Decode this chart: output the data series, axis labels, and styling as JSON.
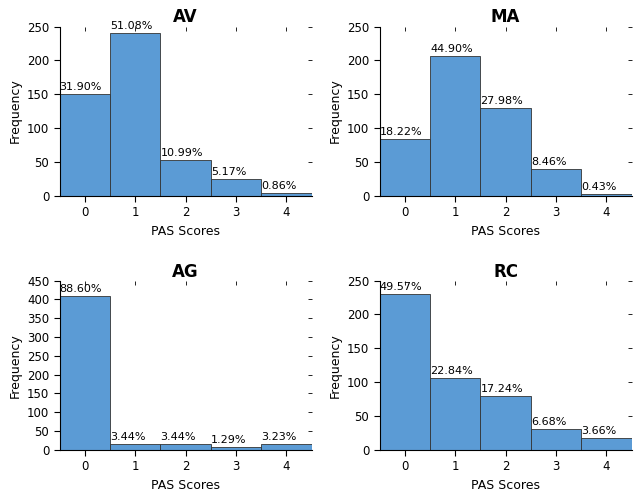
{
  "subplots": [
    {
      "title": "AV",
      "percentages": [
        "31.90%",
        "51.08%",
        "10.99%",
        "5.17%",
        "0.86%"
      ],
      "values": [
        150,
        240,
        52,
        24,
        4
      ],
      "ylim": [
        0,
        250
      ],
      "yticks": [
        0,
        50,
        100,
        150,
        200,
        250
      ]
    },
    {
      "title": "MA",
      "percentages": [
        "18.22%",
        "44.90%",
        "27.98%",
        "8.46%",
        "0.43%"
      ],
      "values": [
        84,
        207,
        129,
        39,
        2
      ],
      "ylim": [
        0,
        250
      ],
      "yticks": [
        0,
        50,
        100,
        150,
        200,
        250
      ]
    },
    {
      "title": "AG",
      "percentages": [
        "88.60%",
        "3.44%",
        "3.44%",
        "1.29%",
        "3.23%"
      ],
      "values": [
        410,
        16,
        16,
        6,
        15
      ],
      "ylim": [
        0,
        450
      ],
      "yticks": [
        0,
        50,
        100,
        150,
        200,
        250,
        300,
        350,
        400,
        450
      ]
    },
    {
      "title": "RC",
      "percentages": [
        "49.57%",
        "22.84%",
        "17.24%",
        "6.68%",
        "3.66%"
      ],
      "values": [
        230,
        106,
        80,
        31,
        17
      ],
      "ylim": [
        0,
        250
      ],
      "yticks": [
        0,
        50,
        100,
        150,
        200,
        250
      ]
    }
  ],
  "bar_color": "#5b9bd5",
  "bar_edge_color": "#333333",
  "xlabel": "PAS Scores",
  "ylabel": "Frequency",
  "background_color": "#ffffff",
  "title_fontsize": 12,
  "label_fontsize": 9,
  "tick_fontsize": 8.5,
  "pct_fontsize": 8
}
